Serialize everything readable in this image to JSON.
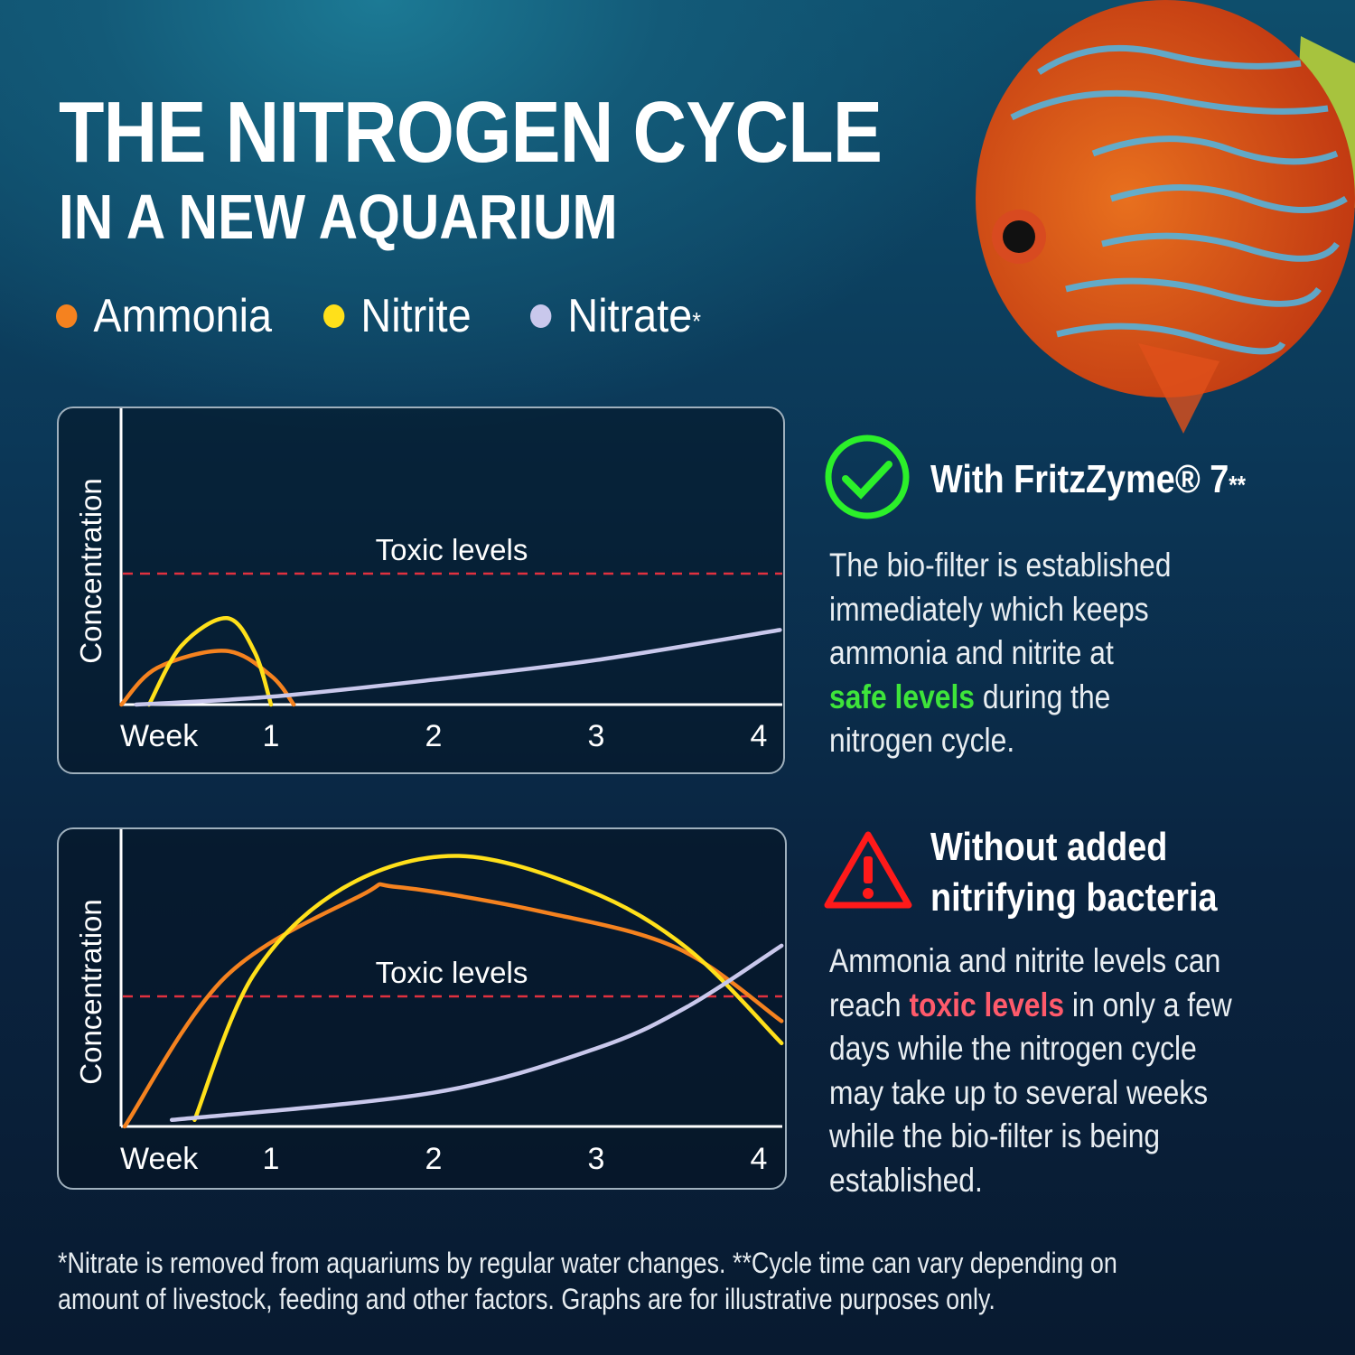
{
  "title": {
    "line1": "THE NITROGEN CYCLE",
    "line2": "IN A NEW AQUARIUM"
  },
  "legend_asterisk": "*",
  "colors": {
    "ammonia": "#f5821f",
    "nitrite": "#ffe01a",
    "nitrate": "#c9c8ec",
    "toxic": "#e0313f",
    "safe": "#3ee43a",
    "warning": "#ff1a1a"
  },
  "with": {
    "icon": "check-circle-icon",
    "heading": "With FritzZyme® 7",
    "heading_sup": "**",
    "text_lines": [
      "The bio-filter is established",
      "immediately which keeps",
      "ammonia and nitrite at"
    ],
    "highlight": "safe levels",
    "after_highlight": " during the",
    "last_line": "nitrogen cycle."
  },
  "without": {
    "icon": "warning-triangle-icon",
    "heading_line1": "Without added",
    "heading_line2": "nitrifying bacteria",
    "line1": "Ammonia and nitrite levels can",
    "line2_before": "reach ",
    "highlight": "toxic levels",
    "line2_after": " in only a few",
    "lines": [
      "days while the nitrogen cycle",
      "may take up to several weeks",
      "while the bio-filter is being",
      "established."
    ]
  },
  "footnote": {
    "line1": "*Nitrate is removed from aquariums by regular water changes. **Cycle time can vary depending on",
    "line2": "amount of livestock, feeding and other factors. Graphs are for illustrative purposes only."
  },
  "chart_data": [
    {
      "type": "line",
      "ylabel": "Concentration",
      "xlabel": "Week",
      "x_ticks": [
        "1",
        "2",
        "3",
        "4"
      ],
      "xlim": [
        0,
        4.1
      ],
      "threshold": {
        "label": "Toxic levels",
        "value": 1.0
      },
      "grid": false,
      "series": [
        {
          "name": "Ammonia",
          "color": "#f5821f",
          "x": [
            0.08,
            0.3,
            0.72,
            1.0,
            1.14
          ],
          "y": [
            0,
            0.28,
            0.41,
            0.22,
            0
          ]
        },
        {
          "name": "Nitrite",
          "color": "#ffe01a",
          "x": [
            0.25,
            0.45,
            0.73,
            0.9,
            1.0
          ],
          "y": [
            0,
            0.45,
            0.66,
            0.4,
            0
          ]
        },
        {
          "name": "Nitrate",
          "color": "#c9c8ec",
          "x": [
            0.17,
            1,
            2,
            3,
            4.13
          ],
          "y": [
            0,
            0.06,
            0.19,
            0.34,
            0.57
          ]
        }
      ]
    },
    {
      "type": "line",
      "ylabel": "Concentration",
      "xlabel": "Week",
      "x_ticks": [
        "1",
        "2",
        "3",
        "4"
      ],
      "xlim": [
        0,
        4.1
      ],
      "threshold": {
        "label": "Toxic levels",
        "value": 1.0
      },
      "grid": false,
      "series": [
        {
          "name": "Ammonia",
          "color": "#f5821f",
          "x": [
            0.1,
            0.72,
            1.56,
            1.78,
            2.67,
            3.5,
            4.14
          ],
          "y": [
            0,
            1.15,
            1.78,
            1.84,
            1.65,
            1.37,
            0.81
          ]
        },
        {
          "name": "Nitrite",
          "color": "#ffe01a",
          "x": [
            0.53,
            0.89,
            1.44,
            2.14,
            2.94,
            3.56,
            4.14
          ],
          "y": [
            0.05,
            1.16,
            1.83,
            2.08,
            1.82,
            1.37,
            0.64
          ]
        },
        {
          "name": "Nitrate",
          "color": "#c9c8ec",
          "x": [
            0.39,
            2,
            3,
            3.56,
            4.14
          ],
          "y": [
            0.05,
            0.26,
            0.6,
            0.92,
            1.39
          ]
        }
      ]
    }
  ]
}
